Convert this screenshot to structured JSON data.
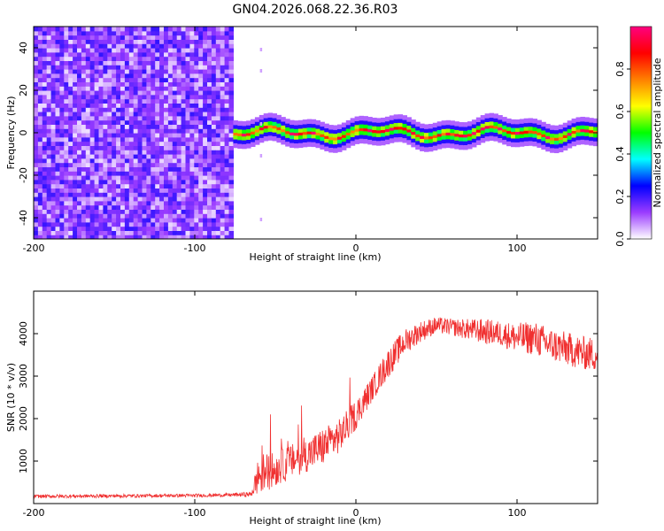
{
  "title": "GN04.2026.068.22.36.R03",
  "chart_data": [
    {
      "type": "heatmap",
      "title": "GN04.2026.068.22.36.R03",
      "xlabel": "Height of straight line (km)",
      "ylabel": "Frequency (Hz)",
      "xlim": [
        -200,
        150
      ],
      "ylim": [
        -50,
        50
      ],
      "x_ticks": [
        -200,
        -100,
        0,
        100
      ],
      "x_tick_labels": [
        "-200",
        "-100",
        "0",
        "100"
      ],
      "y_ticks": [
        -40,
        -20,
        0,
        20,
        40
      ],
      "y_tick_labels": [
        "-40",
        "-20",
        "0",
        "20",
        "40"
      ],
      "noise_region_x": [
        -200,
        -75
      ],
      "signal_start_x": -75,
      "signal_frequency_hz": 0,
      "signal_wander_hz": 3,
      "residual_streak_x": -59,
      "colorbar": {
        "label": "Normalized spectral amplitude",
        "range": [
          0,
          1
        ],
        "ticks": [
          0,
          0.2,
          0.4,
          0.6,
          0.8
        ],
        "tick_labels": [
          "0.0",
          "0.2",
          "0.4",
          "0.6",
          "0.8"
        ],
        "colors": [
          "#ffffff",
          "#9b3cff",
          "#0000ff",
          "#00ffff",
          "#00ff00",
          "#ffff00",
          "#ff8000",
          "#ff0000",
          "#ff0080"
        ]
      }
    },
    {
      "type": "line",
      "xlabel": "Height of straight line (km)",
      "ylabel": "SNR (10 * v/v)",
      "xlim": [
        -200,
        150
      ],
      "ylim": [
        0,
        5000
      ],
      "x_ticks": [
        -200,
        -100,
        0,
        100
      ],
      "x_tick_labels": [
        "-200",
        "-100",
        "0",
        "100"
      ],
      "y_ticks": [
        1000,
        2000,
        3000,
        4000
      ],
      "y_tick_labels": [
        "1000",
        "2000",
        "3000",
        "4000"
      ],
      "color": "#f03030",
      "series": [
        {
          "name": "SNR",
          "x": [
            -200,
            -150,
            -100,
            -80,
            -65,
            -60,
            -55,
            -50,
            -40,
            -30,
            -20,
            -10,
            0,
            10,
            20,
            30,
            40,
            50,
            60,
            70,
            80,
            90,
            100,
            110,
            120,
            130,
            140,
            150
          ],
          "y": [
            170,
            180,
            190,
            200,
            220,
            700,
            750,
            800,
            1000,
            1150,
            1350,
            1600,
            2100,
            2700,
            3300,
            3800,
            4050,
            4200,
            4150,
            4100,
            4050,
            4000,
            3900,
            3900,
            3750,
            3650,
            3550,
            3500
          ],
          "noise_amplitude": [
            40,
            40,
            40,
            40,
            60,
            500,
            450,
            400,
            400,
            400,
            450,
            400,
            350,
            300,
            350,
            300,
            250,
            200,
            200,
            250,
            300,
            300,
            350,
            400,
            400,
            400,
            400,
            400
          ]
        }
      ]
    }
  ]
}
